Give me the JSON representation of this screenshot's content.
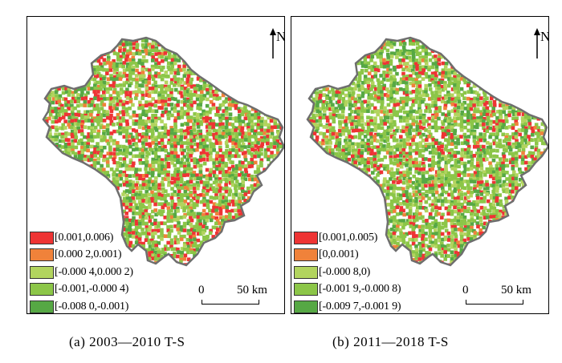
{
  "colors": {
    "class1": "#ee3434",
    "class2": "#f0823a",
    "class3": "#b2d45e",
    "class4": "#8cc648",
    "class5": "#56a844",
    "outline": "#6e6e6e"
  },
  "panels": [
    {
      "north_label": "N",
      "legend": [
        {
          "label": "[0.001,0.006)",
          "color_key": "class1"
        },
        {
          "label": "[0.000 2,0.001)",
          "color_key": "class2"
        },
        {
          "label": "[-0.000 4,0.000 2)",
          "color_key": "class3"
        },
        {
          "label": "[-0.001,-0.000 4)",
          "color_key": "class4"
        },
        {
          "label": "[-0.008 0,-0.001)",
          "color_key": "class5"
        }
      ],
      "scale": {
        "zero": "0",
        "fifty": "50 km"
      },
      "caption": "(a) 2003—2010 T-S"
    },
    {
      "north_label": "N",
      "legend": [
        {
          "label": "[0.001,0.005)",
          "color_key": "class1"
        },
        {
          "label": "[0,0.001)",
          "color_key": "class2"
        },
        {
          "label": "[-0.000 8,0)",
          "color_key": "class3"
        },
        {
          "label": "[-0.001 9,-0.000 8)",
          "color_key": "class4"
        },
        {
          "label": "[-0.009 7,-0.001 9)",
          "color_key": "class5"
        }
      ],
      "scale": {
        "zero": "0",
        "fifty": "50 km"
      },
      "caption": "(b) 2011—2018 T-S"
    }
  ]
}
